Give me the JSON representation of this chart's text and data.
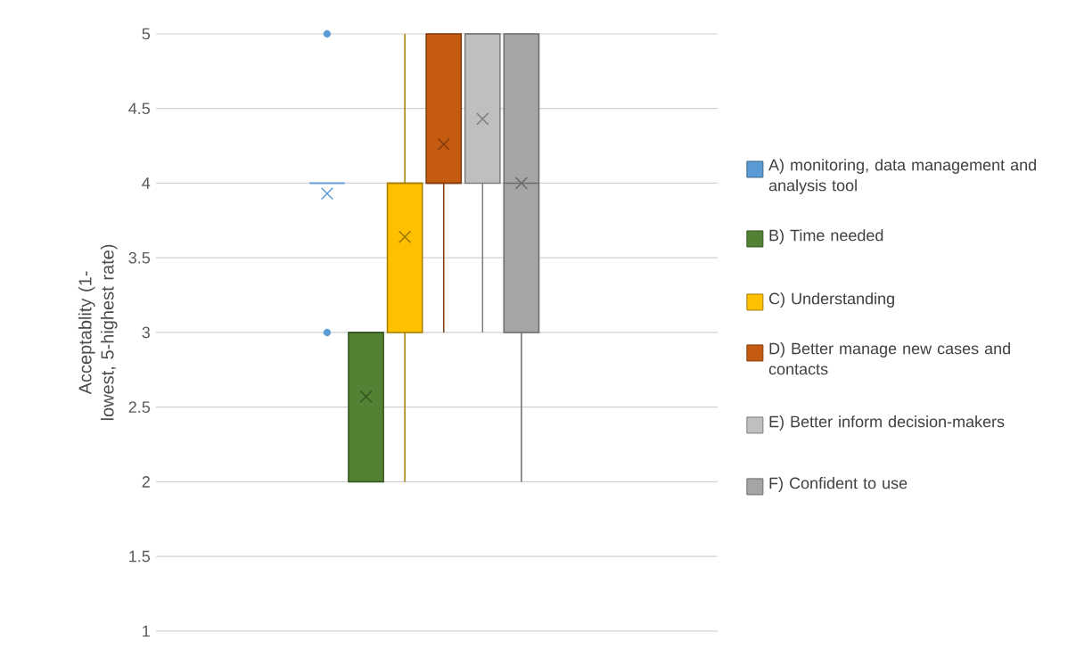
{
  "chart_data": {
    "type": "box",
    "ylabel": "Acceptablity (1- lowest, 5-highest rate)",
    "categories": [
      null
    ],
    "ylim": [
      1,
      5
    ],
    "yticks": [
      1,
      1.5,
      2,
      2.5,
      3,
      3.5,
      4,
      4.5,
      5
    ],
    "grid": "y",
    "legend": "right",
    "series": [
      {
        "name": "A) monitoring, data management and analysis tool",
        "color": "#5b9bd5",
        "boxes": [
          {
            "low": 4,
            "q1": 4,
            "median": 4,
            "q3": 4,
            "high": 4,
            "mean": 3.93,
            "outliers": [
              3,
              5
            ]
          }
        ]
      },
      {
        "name": "B) Time needed",
        "color": "#548235",
        "boxes": [
          {
            "low": 2,
            "q1": 2,
            "median": 3,
            "q3": 3,
            "high": 3,
            "mean": 2.57
          }
        ]
      },
      {
        "name": "C) Understanding",
        "color": "#ffc000",
        "boxes": [
          {
            "low": 2,
            "q1": 3,
            "median": 4,
            "q3": 4,
            "high": 5,
            "mean": 3.64
          }
        ]
      },
      {
        "name": "D) Better manage new cases and contacts",
        "color": "#c55a11",
        "boxes": [
          {
            "low": 3,
            "q1": 4,
            "median": 4,
            "q3": 5,
            "high": 5,
            "mean": 4.26
          }
        ]
      },
      {
        "name": "E) Better inform decision-makers",
        "color": "#bfbfbf",
        "boxes": [
          {
            "low": 3,
            "q1": 4,
            "median": 5,
            "q3": 5,
            "high": 5,
            "mean": 4.43
          }
        ]
      },
      {
        "name": "F) Confident to use",
        "color": "#a5a5a5",
        "boxes": [
          {
            "low": 2,
            "q1": 3,
            "median": 4,
            "q3": 5,
            "high": 5,
            "mean": 4
          }
        ]
      }
    ]
  }
}
